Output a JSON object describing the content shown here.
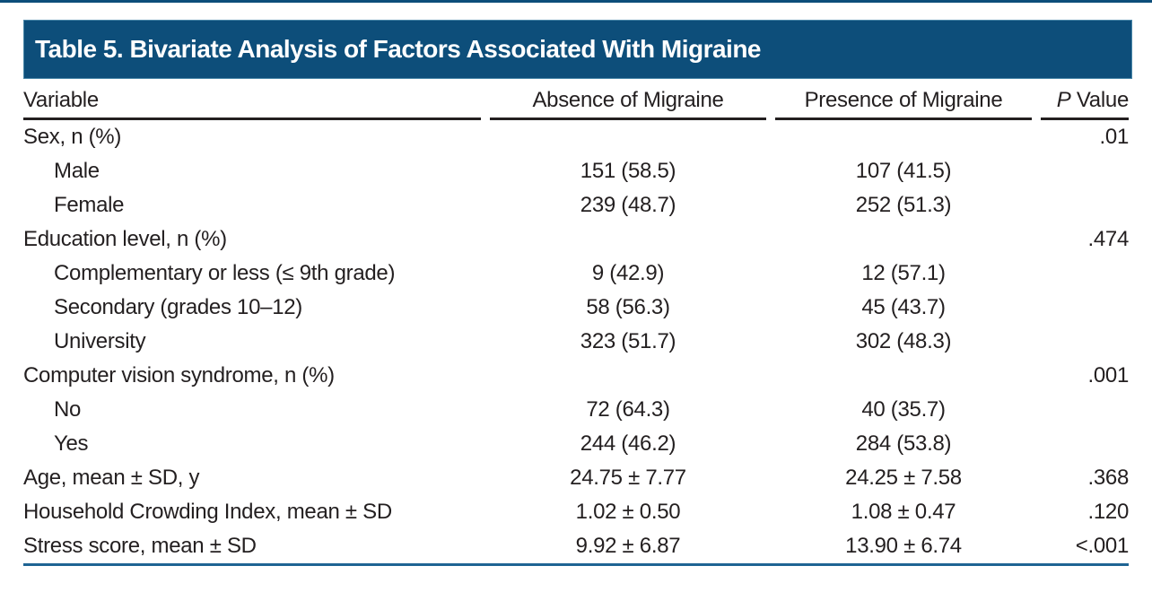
{
  "page": {
    "title": "Table 5. Bivariate Analysis of Factors Associated With Migraine"
  },
  "table": {
    "header": {
      "variable": "Variable",
      "absence": "Absence of Migraine",
      "presence": "Presence of Migraine",
      "p_italic": "P",
      "p_rest": " Value"
    },
    "rows": [
      {
        "label": "Sex, n (%)",
        "indent": false,
        "absence": "",
        "presence": "",
        "p": ".01"
      },
      {
        "label": "Male",
        "indent": true,
        "absence": "151 (58.5)",
        "presence": "107 (41.5)",
        "p": ""
      },
      {
        "label": "Female",
        "indent": true,
        "absence": "239 (48.7)",
        "presence": "252 (51.3)",
        "p": ""
      },
      {
        "label": "Education level, n (%)",
        "indent": false,
        "absence": "",
        "presence": "",
        "p": ".474"
      },
      {
        "label": "Complementary or less (≤ 9th grade)",
        "indent": true,
        "absence": "9 (42.9)",
        "presence": "12 (57.1)",
        "p": ""
      },
      {
        "label": "Secondary (grades 10–12)",
        "indent": true,
        "absence": "58 (56.3)",
        "presence": "45 (43.7)",
        "p": ""
      },
      {
        "label": "University",
        "indent": true,
        "absence": "323 (51.7)",
        "presence": "302 (48.3)",
        "p": ""
      },
      {
        "label": "Computer vision syndrome, n (%)",
        "indent": false,
        "absence": "",
        "presence": "",
        "p": ".001"
      },
      {
        "label": "No",
        "indent": true,
        "absence": "72 (64.3)",
        "presence": "40 (35.7)",
        "p": ""
      },
      {
        "label": "Yes",
        "indent": true,
        "absence": "244 (46.2)",
        "presence": "284 (53.8)",
        "p": ""
      },
      {
        "label": "Age, mean ± SD, y",
        "indent": false,
        "absence": "24.75 ± 7.77",
        "presence": "24.25 ± 7.58",
        "p": ".368"
      },
      {
        "label": "Household Crowding Index, mean ± SD",
        "indent": false,
        "absence": "1.02 ± 0.50",
        "presence": "1.08 ± 0.47",
        "p": ".120"
      },
      {
        "label": "Stress score, mean ± SD",
        "indent": false,
        "absence": "9.92 ± 6.87",
        "presence": "13.90 ± 6.74",
        "p": "<.001"
      }
    ]
  },
  "colors": {
    "title_bar_bg": "#0D4E7A",
    "top_stripe": "#0D4E7A",
    "header_rule": "#231F20",
    "bottom_rule": "#1E6493",
    "text": "#231F20",
    "title_text": "#FFFFFF"
  }
}
